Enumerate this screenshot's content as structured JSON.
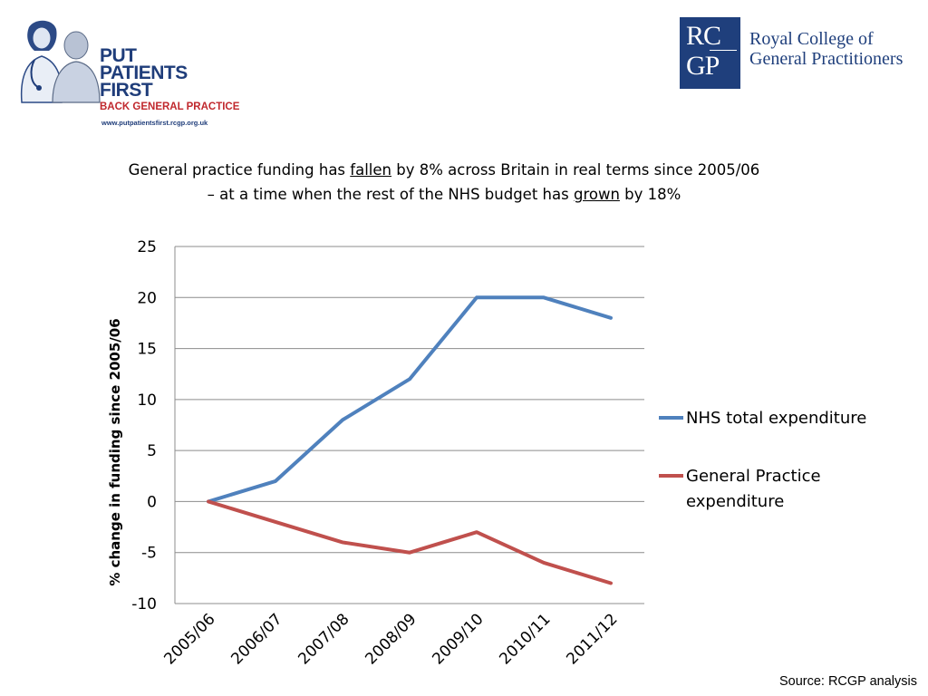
{
  "logos": {
    "ppf": {
      "lines": [
        "PUT",
        "PATIENTS",
        "FIRST"
      ],
      "tagline": "BACK GENERAL PRACTICE",
      "url": "www.putpatientsfirst.rcgp.org.uk"
    },
    "rcgp": {
      "box_top": "RC",
      "box_bottom": "GP",
      "name_line1": "Royal College of",
      "name_line2": "General Practitioners"
    }
  },
  "headline": {
    "l1_a": "General practice funding has ",
    "l1_u": "fallen",
    "l1_b": " by 8% across Britain in real terms since 2005/06",
    "l2_a": "– at a time when the rest of the NHS budget has ",
    "l2_u": "grown",
    "l2_b": " by 18%"
  },
  "chart_data": {
    "type": "line",
    "categories": [
      "2005/06",
      "2006/07",
      "2007/08",
      "2008/09",
      "2009/10",
      "2010/11",
      "2011/12"
    ],
    "series": [
      {
        "name": "NHS total expenditure",
        "values": [
          0,
          2,
          8,
          12,
          20,
          20,
          18
        ],
        "color": "#4f81bd"
      },
      {
        "name_lines": [
          "General Practice",
          "expenditure"
        ],
        "values": [
          0,
          -2,
          -4,
          -5,
          -3,
          -6,
          -8
        ],
        "color": "#c0504d"
      }
    ],
    "ylabel": "% change in funding since 2005/06",
    "ylim": [
      -10,
      25
    ],
    "yticks": [
      25,
      20,
      15,
      10,
      5,
      0,
      -5,
      -10
    ],
    "grid": true,
    "legend": "right"
  },
  "source": "Source: RCGP analysis"
}
